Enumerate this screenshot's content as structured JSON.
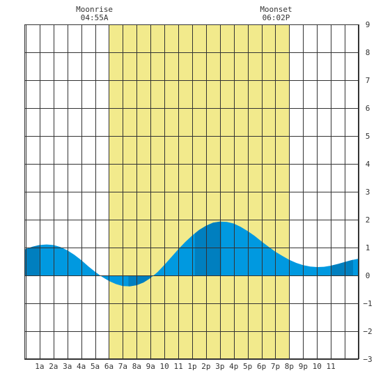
{
  "chart_data": {
    "type": "area",
    "title": "",
    "xlabel": "",
    "ylabel": "",
    "x_ticks": [
      "1a",
      "2a",
      "3a",
      "4a",
      "5a",
      "6a",
      "7a",
      "8a",
      "9a",
      "10",
      "11",
      "1p",
      "2p",
      "3p",
      "4p",
      "5p",
      "6p",
      "7p",
      "8p",
      "9p",
      "10",
      "11"
    ],
    "y_ticks": [
      "9",
      "8",
      "7",
      "6",
      "5",
      "4",
      "3",
      "2",
      "1",
      "0",
      "−1",
      "−2",
      "−3"
    ],
    "xlim_hours": [
      -0.1,
      24.0
    ],
    "ylim": [
      -3,
      9
    ],
    "grid": true,
    "daylight_band_hours": [
      6.0,
      19.0
    ],
    "moonrise": {
      "label": "Moonrise",
      "time": "04:55A"
    },
    "moonset": {
      "label": "Moonset",
      "time": "06:02P"
    },
    "series": [
      {
        "x": [
          -0.1,
          0,
          0.5,
          1,
          1.5,
          2,
          2.5,
          3,
          3.5,
          4,
          4.5,
          5,
          5.5,
          6,
          6.5,
          7,
          7.5,
          8,
          8.5,
          9,
          9.5,
          10,
          10.5,
          11,
          11.5,
          12,
          12.5,
          13,
          13.5,
          14,
          14.5,
          15,
          15.5,
          16,
          16.5,
          17,
          17.5,
          18,
          18.5,
          19,
          19.5,
          20,
          20.5,
          21,
          21.5,
          22,
          22.5,
          23,
          23.5,
          24
        ],
        "values": [
          0.92,
          0.95,
          1.03,
          1.09,
          1.11,
          1.09,
          1.02,
          0.9,
          0.74,
          0.55,
          0.33,
          0.13,
          -0.05,
          -0.2,
          -0.31,
          -0.38,
          -0.39,
          -0.35,
          -0.25,
          -0.09,
          0.12,
          0.38,
          0.66,
          0.94,
          1.2,
          1.43,
          1.63,
          1.78,
          1.89,
          1.93,
          1.92,
          1.86,
          1.74,
          1.59,
          1.42,
          1.22,
          1.03,
          0.85,
          0.7,
          0.56,
          0.45,
          0.37,
          0.32,
          0.3,
          0.31,
          0.35,
          0.41,
          0.48,
          0.55,
          0.6
        ]
      }
    ],
    "extrema": [
      {
        "type": "high",
        "time": 1.6,
        "value": 1.11
      },
      {
        "type": "low",
        "time": 7.4,
        "value": -0.39
      },
      {
        "type": "high",
        "time": 14.1,
        "value": 1.93
      },
      {
        "type": "low",
        "time": 21.1,
        "value": 0.3
      }
    ],
    "colors": {
      "daylight": "#f2ea8c",
      "tide_fill": "#0099e0",
      "tide_highlight": "#007fbf",
      "grid": "#333333"
    }
  }
}
